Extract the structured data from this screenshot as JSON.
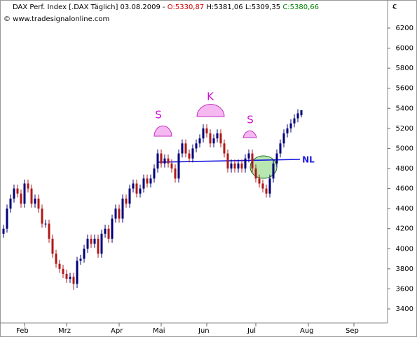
{
  "chart_data": {
    "type": "candlestick",
    "title": {
      "name": "DAX Perf. Index [.DAX Täglich] 03.08.2009 -",
      "open": "O:5330,87",
      "highlow": "H:5381,06 L:5309,35",
      "close": "C:5380,66"
    },
    "watermark": "© www.tradesignalonline.com",
    "currency": "€",
    "categories": [
      null,
      null,
      null,
      null,
      null,
      null,
      "Feb",
      null,
      null,
      null,
      null,
      null,
      null,
      null,
      null,
      null,
      null,
      null,
      "Mrz",
      null,
      null,
      null,
      null,
      null,
      null,
      null,
      null,
      null,
      null,
      null,
      null,
      null,
      null,
      "Apr",
      null,
      null,
      null,
      null,
      null,
      null,
      null,
      null,
      null,
      null,
      null,
      "Mai",
      null,
      null,
      null,
      null,
      null,
      null,
      null,
      null,
      null,
      null,
      null,
      null,
      "Jun",
      null,
      null,
      null,
      null,
      null,
      null,
      null,
      null,
      null,
      null,
      null,
      null,
      null,
      "Jul",
      null,
      null,
      null,
      null,
      null,
      null,
      null,
      null,
      null,
      null,
      null,
      null,
      null,
      null,
      "Aug",
      null,
      null,
      null,
      null,
      null,
      null,
      null,
      null,
      null,
      null,
      null,
      null,
      "Sep"
    ],
    "open": [
      4150,
      4200,
      4400,
      4500,
      4600,
      4550,
      4450,
      4650,
      4600,
      4450,
      4500,
      4400,
      4250,
      4250,
      4100,
      3950,
      3850,
      3800,
      3750,
      3700,
      3720,
      3650,
      3880,
      3900,
      4000,
      4100,
      4050,
      4100,
      3950,
      4150,
      4200,
      4100,
      4300,
      4400,
      4300,
      4500,
      4450,
      4600,
      4650,
      4550,
      4600,
      4700,
      4650,
      4700,
      4800,
      4950,
      4850,
      4900,
      4850,
      4800,
      4700,
      4950,
      5050,
      4950,
      4900,
      5000,
      5050,
      5100,
      5200,
      5150,
      5050,
      5100,
      5150,
      5050,
      4950,
      4800,
      4850,
      4800,
      4850,
      4800,
      4900,
      4950,
      4800,
      4700,
      4650,
      4600,
      4550,
      4700,
      4850,
      4950,
      5050,
      5150,
      5200,
      5250,
      5300,
      5330.87,
      null,
      null,
      null,
      null,
      null,
      null,
      null,
      null,
      null,
      null,
      null,
      null,
      null,
      null,
      null
    ],
    "high": [
      4240,
      4440,
      4540,
      4640,
      4640,
      4590,
      4690,
      4690,
      4640,
      4540,
      4540,
      4440,
      4290,
      4290,
      4140,
      3990,
      3890,
      3840,
      3790,
      3760,
      3760,
      3920,
      3940,
      4040,
      4140,
      4140,
      4140,
      4140,
      4190,
      4240,
      4240,
      4340,
      4440,
      4440,
      4540,
      4540,
      4640,
      4690,
      4690,
      4640,
      4740,
      4740,
      4740,
      4840,
      4990,
      4990,
      4940,
      4940,
      4890,
      4840,
      4990,
      5090,
      5090,
      4990,
      5040,
      5090,
      5140,
      5240,
      5240,
      5190,
      5140,
      5190,
      5190,
      5090,
      4990,
      4890,
      4890,
      4890,
      4890,
      4940,
      4990,
      4990,
      4840,
      4740,
      4690,
      4640,
      4740,
      4890,
      4990,
      5090,
      5190,
      5240,
      5290,
      5340,
      5390,
      5381.06,
      null,
      null,
      null,
      null,
      null,
      null,
      null,
      null,
      null,
      null,
      null,
      null,
      null,
      null,
      null
    ],
    "low": [
      4110,
      4160,
      4360,
      4460,
      4510,
      4410,
      4410,
      4560,
      4410,
      4410,
      4360,
      4210,
      4210,
      4060,
      3910,
      3810,
      3760,
      3710,
      3660,
      3660,
      3590,
      3610,
      3840,
      3860,
      3960,
      4010,
      4010,
      3910,
      3910,
      4110,
      4060,
      4060,
      4260,
      4260,
      4260,
      4410,
      4410,
      4560,
      4510,
      4510,
      4560,
      4610,
      4610,
      4660,
      4760,
      4810,
      4810,
      4810,
      4760,
      4660,
      4660,
      4910,
      4910,
      4860,
      4860,
      4960,
      5010,
      5060,
      5110,
      5010,
      5010,
      5060,
      5010,
      4910,
      4760,
      4760,
      4760,
      4760,
      4760,
      4760,
      4860,
      4760,
      4660,
      4610,
      4560,
      4510,
      4510,
      4660,
      4810,
      4910,
      5010,
      5110,
      5160,
      5210,
      5260,
      5309.35,
      null,
      null,
      null,
      null,
      null,
      null,
      null,
      null,
      null,
      null,
      null,
      null,
      null,
      null,
      null
    ],
    "close": [
      4200,
      4400,
      4500,
      4600,
      4550,
      4450,
      4650,
      4600,
      4450,
      4500,
      4400,
      4250,
      4250,
      4100,
      3950,
      3850,
      3800,
      3750,
      3700,
      3720,
      3650,
      3880,
      3900,
      4000,
      4100,
      4050,
      4100,
      3950,
      4150,
      4200,
      4100,
      4300,
      4400,
      4300,
      4500,
      4450,
      4600,
      4650,
      4550,
      4600,
      4700,
      4650,
      4700,
      4800,
      4950,
      4850,
      4900,
      4850,
      4800,
      4700,
      4950,
      5050,
      4950,
      4900,
      5000,
      5050,
      5100,
      5200,
      5150,
      5050,
      5100,
      5150,
      5050,
      4950,
      4800,
      4850,
      4800,
      4850,
      4800,
      4900,
      4950,
      4800,
      4700,
      4650,
      4600,
      4550,
      4700,
      4850,
      4950,
      5050,
      5150,
      5200,
      5250,
      5300,
      5350,
      5380.66,
      null,
      null,
      null,
      null,
      null,
      null,
      null,
      null,
      null,
      null,
      null,
      null,
      null,
      null,
      null
    ],
    "up_color": "#00007a",
    "down_color": "#b01818",
    "ylim": [
      3260,
      6445
    ],
    "yticks": [
      3400,
      3600,
      3800,
      4000,
      4200,
      4400,
      4600,
      4800,
      5000,
      5200,
      5400,
      5600,
      5800,
      6000,
      6200
    ],
    "annotations": {
      "left_shoulder": "S",
      "head": "K",
      "right_shoulder": "S",
      "neckline": "NL"
    }
  }
}
